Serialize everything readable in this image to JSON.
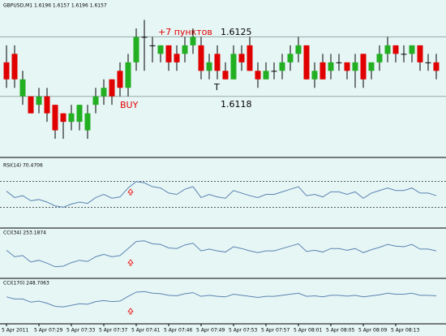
{
  "chart_data": [
    {
      "type": "candlestick",
      "title": "GBPUSD,M1  1.6196 1.6157 1.6196 1.6157",
      "categories": [
        "5 Apr 2011",
        null,
        null,
        null,
        "5 Apr 07:29",
        null,
        null,
        null,
        "5 Apr 07:33",
        null,
        null,
        null,
        "5 Apr 07:37",
        null,
        null,
        null,
        "5 Apr 07:41",
        null,
        null,
        null,
        "5 Apr 07:46",
        null,
        null,
        null,
        "5 Apr 07:49",
        null,
        null,
        null,
        "5 Apr 07:53",
        null,
        null,
        null,
        "5 Apr 07:57",
        null,
        null,
        null,
        "5 Apr 08:01",
        null,
        null,
        null,
        "5 Apr 08:05",
        null,
        null,
        null,
        "5 Apr 08:09",
        null,
        null,
        null,
        "5 Apr 08:13",
        null,
        null,
        null,
        null,
        null
      ],
      "open": [
        1.6122,
        1.6123,
        1.6118,
        1.6118,
        1.6117,
        1.6118,
        1.6117,
        1.6116,
        1.6115,
        1.6115,
        1.6114,
        1.6117,
        1.6118,
        1.612,
        1.6121,
        1.6119,
        1.6122,
        1.6125,
        1.6124,
        1.6123,
        1.6124,
        1.6123,
        1.6123,
        1.6124,
        1.6124,
        1.6121,
        1.6123,
        1.6121,
        1.612,
        1.6123,
        1.6124,
        1.6121,
        1.612,
        1.6121,
        1.6121,
        1.6122,
        1.6123,
        1.6124,
        1.612,
        1.6122,
        1.6121,
        1.6122,
        1.6122,
        1.6121,
        1.6123,
        1.6121,
        1.6122,
        1.6123,
        1.6124,
        1.6123,
        1.6123,
        1.6124,
        1.6122,
        1.6122
      ],
      "high": [
        1.6124,
        1.6124,
        1.6121,
        1.6118,
        1.6119,
        1.6119,
        1.6117,
        1.6116,
        1.6117,
        1.6117,
        1.6117,
        1.6119,
        1.612,
        1.612,
        1.6122,
        1.6123,
        1.6126,
        1.6127,
        1.6125,
        1.6124,
        1.6124,
        1.6124,
        1.6125,
        1.6126,
        1.6125,
        1.6123,
        1.6124,
        1.6122,
        1.6124,
        1.6124,
        1.6125,
        1.6122,
        1.6122,
        1.6122,
        1.6123,
        1.6124,
        1.6125,
        1.6124,
        1.6122,
        1.6123,
        1.6123,
        1.6123,
        1.6122,
        1.6123,
        1.6123,
        1.6122,
        1.6124,
        1.6125,
        1.6124,
        1.6124,
        1.6124,
        1.6124,
        1.6123,
        1.6123
      ],
      "low": [
        1.6119,
        1.6119,
        1.6117,
        1.6116,
        1.6116,
        1.6115,
        1.6113,
        1.6113,
        1.6114,
        1.6114,
        1.6113,
        1.6116,
        1.6117,
        1.6117,
        1.6118,
        1.6118,
        1.6121,
        1.6121,
        1.6122,
        1.6122,
        1.6121,
        1.6121,
        1.6122,
        1.6123,
        1.612,
        1.612,
        1.612,
        1.612,
        1.612,
        1.6121,
        1.6121,
        1.6119,
        1.612,
        1.612,
        1.612,
        1.6121,
        1.6122,
        1.612,
        1.6119,
        1.612,
        1.612,
        1.6121,
        1.612,
        1.6119,
        1.6119,
        1.612,
        1.6121,
        1.6122,
        1.6122,
        1.6122,
        1.6122,
        1.6121,
        1.6121,
        1.612
      ],
      "close": [
        1.612,
        1.612,
        1.612,
        1.6116,
        1.6118,
        1.6116,
        1.6114,
        1.6115,
        1.6116,
        1.6117,
        1.6116,
        1.6118,
        1.6119,
        1.6118,
        1.6119,
        1.6122,
        1.6125,
        1.6125,
        1.6124,
        1.6124,
        1.6122,
        1.6122,
        1.6124,
        1.6125,
        1.6121,
        1.6122,
        1.6121,
        1.612,
        1.6123,
        1.6122,
        1.6121,
        1.612,
        1.6121,
        1.6121,
        1.6122,
        1.6123,
        1.6124,
        1.612,
        1.6121,
        1.612,
        1.6122,
        1.6122,
        1.6121,
        1.6122,
        1.612,
        1.6122,
        1.6123,
        1.6124,
        1.6123,
        1.6123,
        1.6124,
        1.6122,
        1.6122,
        1.6121
      ],
      "up_color": "#22b022",
      "down_color": "#e00000",
      "ylim": [
        1.6111,
        1.6128
      ],
      "hlines": [
        1.6125,
        1.6118
      ],
      "annotations": [
        "+7 пунктов",
        "BUY",
        "T"
      ]
    },
    {
      "type": "line",
      "title": "RSI(14) 70.4706",
      "color": "#5b84b1",
      "ylim": [
        0,
        100
      ],
      "levels": [
        70,
        30
      ],
      "values": [
        55,
        45,
        48,
        40,
        42,
        38,
        32,
        30,
        35,
        38,
        36,
        45,
        50,
        44,
        46,
        60,
        70,
        68,
        62,
        60,
        52,
        50,
        58,
        62,
        45,
        50,
        46,
        44,
        56,
        52,
        48,
        45,
        50,
        50,
        54,
        58,
        62,
        48,
        50,
        46,
        54,
        54,
        50,
        54,
        44,
        52,
        56,
        60,
        56,
        56,
        60,
        52,
        52,
        48
      ]
    },
    {
      "type": "line",
      "title": "CCI(34) 253.1874",
      "color": "#5b84b1",
      "ylim": [
        -400,
        400
      ],
      "values": [
        50,
        -60,
        -40,
        -150,
        -120,
        -170,
        -230,
        -220,
        -160,
        -120,
        -140,
        -60,
        -20,
        -60,
        -40,
        80,
        200,
        210,
        160,
        150,
        90,
        80,
        140,
        170,
        40,
        70,
        40,
        20,
        110,
        80,
        40,
        10,
        40,
        40,
        80,
        120,
        160,
        30,
        50,
        20,
        80,
        80,
        50,
        80,
        10,
        60,
        100,
        150,
        120,
        110,
        150,
        70,
        70,
        40
      ]
    },
    {
      "type": "line",
      "title": "CCI(170) 248.7063",
      "color": "#5b84b1",
      "ylim": [
        -400,
        400
      ],
      "values": [
        80,
        40,
        40,
        -20,
        0,
        -40,
        -100,
        -110,
        -80,
        -50,
        -60,
        -10,
        10,
        -10,
        0,
        90,
        170,
        180,
        150,
        140,
        110,
        100,
        140,
        160,
        90,
        110,
        90,
        80,
        130,
        110,
        90,
        70,
        90,
        90,
        110,
        130,
        150,
        90,
        100,
        80,
        110,
        110,
        95,
        110,
        80,
        100,
        120,
        150,
        130,
        130,
        150,
        110,
        110,
        100
      ]
    }
  ]
}
